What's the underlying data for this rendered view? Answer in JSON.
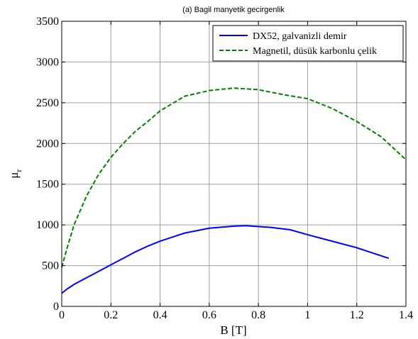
{
  "chart_data": {
    "type": "line",
    "title": "(a) Bagil manyetik gecirgenlik",
    "xlabel": "B [T]",
    "ylabel": "μ",
    "ylabel_sub": "r",
    "xlim": [
      0,
      1.4
    ],
    "ylim": [
      0,
      3500
    ],
    "xticks": [
      0,
      0.2,
      0.4,
      0.6,
      0.8,
      1,
      1.2,
      1.4
    ],
    "xtick_labels": [
      "0",
      "0.2",
      "0.4",
      "0.6",
      "0.8",
      "1",
      "1.2",
      "1.4"
    ],
    "yticks": [
      0,
      500,
      1000,
      1500,
      2000,
      2500,
      3000,
      3500
    ],
    "ytick_labels": [
      "0",
      "500",
      "1000",
      "1500",
      "2000",
      "2500",
      "3000",
      "3500"
    ],
    "grid": true,
    "legend_position": "top-right",
    "series": [
      {
        "name": "DX52, galvanizli demir",
        "color": "#0000ff",
        "style": "solid",
        "x": [
          0,
          0.02,
          0.05,
          0.1,
          0.15,
          0.2,
          0.25,
          0.3,
          0.35,
          0.4,
          0.5,
          0.6,
          0.7,
          0.75,
          0.85,
          0.93,
          1.0,
          1.1,
          1.2,
          1.25,
          1.33
        ],
        "y": [
          160,
          210,
          270,
          350,
          430,
          510,
          590,
          670,
          740,
          800,
          900,
          960,
          985,
          990,
          970,
          940,
          880,
          800,
          720,
          670,
          590
        ]
      },
      {
        "name": "Magnetil, düsük karbonlu çelik",
        "color": "#008000",
        "style": "dashed",
        "x": [
          0,
          0.02,
          0.05,
          0.1,
          0.15,
          0.2,
          0.25,
          0.3,
          0.35,
          0.4,
          0.5,
          0.6,
          0.7,
          0.8,
          0.9,
          1.0,
          1.1,
          1.2,
          1.3,
          1.4
        ],
        "y": [
          480,
          700,
          1000,
          1350,
          1620,
          1830,
          2000,
          2150,
          2270,
          2400,
          2580,
          2650,
          2680,
          2660,
          2600,
          2550,
          2430,
          2270,
          2080,
          1800
        ]
      }
    ]
  }
}
